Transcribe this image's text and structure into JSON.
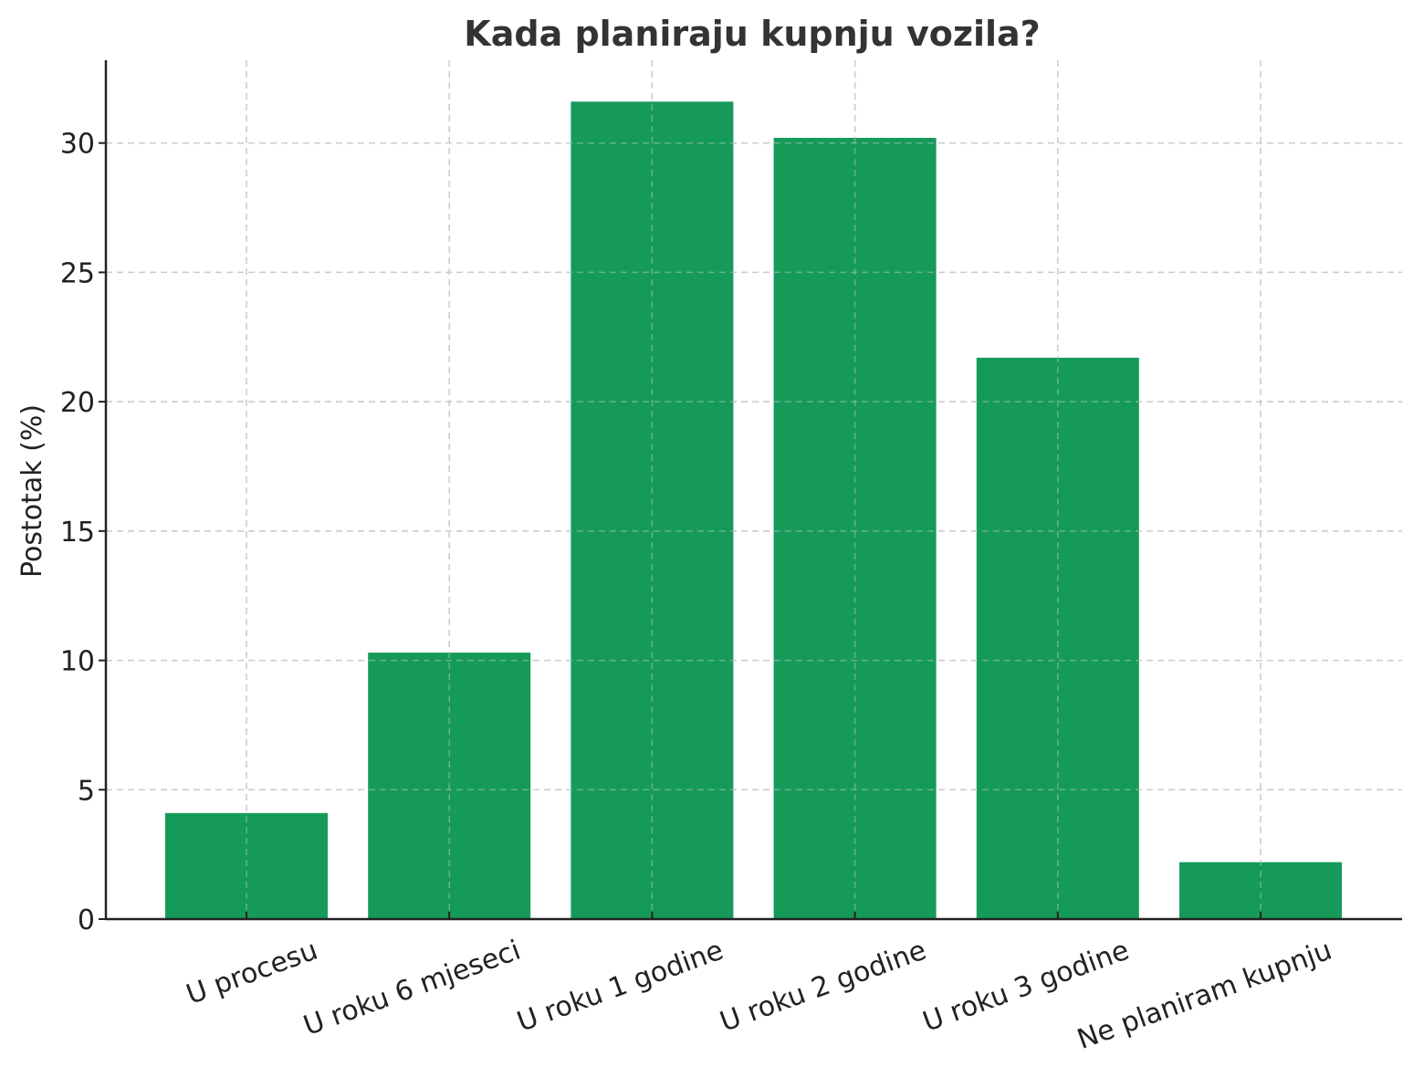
{
  "chart_data": {
    "type": "bar",
    "title": "Kada planiraju kupnju vozila?",
    "xlabel": "",
    "ylabel": "Postotak (%)",
    "categories": [
      "U procesu",
      "U roku 6 mjeseci",
      "U roku 1 godine",
      "U roku 2 godine",
      "U roku 3 godine",
      "Ne planiram kupnju"
    ],
    "values": [
      4.1,
      10.3,
      31.6,
      30.2,
      21.7,
      2.2
    ],
    "ylim": [
      0,
      33.2
    ],
    "yticks": [
      0,
      5,
      10,
      15,
      20,
      25,
      30
    ],
    "grid": true,
    "bar_color": "#159a5a"
  }
}
